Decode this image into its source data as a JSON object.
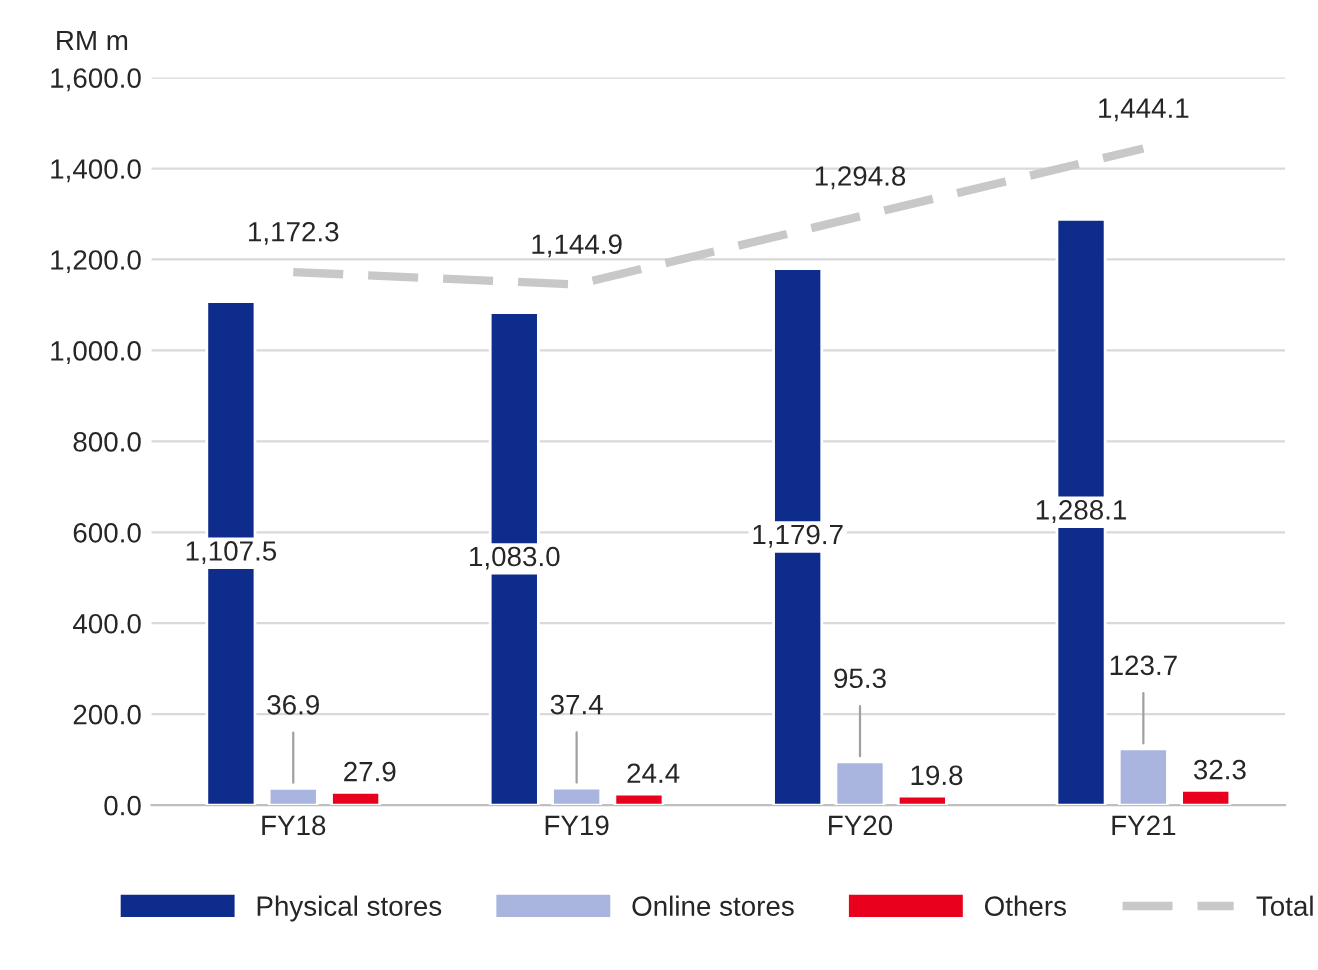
{
  "chart_data": {
    "type": "bar",
    "ylabel": "RM m",
    "categories": [
      "FY18",
      "FY19",
      "FY20",
      "FY21"
    ],
    "series": [
      {
        "name": "Physical stores",
        "color": "#0d2c8c",
        "values": [
          1107.5,
          1083.0,
          1179.7,
          1288.1
        ],
        "value_labels": [
          "1,107.5",
          "1,083.0",
          "1,179.7",
          "1,288.1"
        ]
      },
      {
        "name": "Online stores",
        "color": "#a9b5de",
        "values": [
          36.9,
          37.4,
          95.3,
          123.7
        ],
        "value_labels": [
          "36.9",
          "37.4",
          "95.3",
          "123.7"
        ]
      },
      {
        "name": "Others",
        "color": "#e8001c",
        "values": [
          27.9,
          24.4,
          19.8,
          32.3
        ],
        "value_labels": [
          "27.9",
          "24.4",
          "19.8",
          "32.3"
        ]
      },
      {
        "name": "Total",
        "type": "line",
        "line_style": "dashed",
        "color": "#c8c8c8",
        "values": [
          1172.3,
          1144.9,
          1294.8,
          1444.1
        ],
        "value_labels": [
          "1,172.3",
          "1,144.9",
          "1,294.8",
          "1,444.1"
        ]
      }
    ],
    "ylim": [
      0,
      1600
    ],
    "yticks": [
      {
        "value": 0,
        "label": "0.0"
      },
      {
        "value": 200,
        "label": "200.0"
      },
      {
        "value": 400,
        "label": "400.0"
      },
      {
        "value": 600,
        "label": "600.0"
      },
      {
        "value": 800,
        "label": "800.0"
      },
      {
        "value": 1000,
        "label": "1,000.0"
      },
      {
        "value": 1200,
        "label": "1,200.0"
      },
      {
        "value": 1400,
        "label": "1,400.0"
      },
      {
        "value": 1600,
        "label": "1,600.0"
      }
    ],
    "grid": "y",
    "legend": "bottom"
  }
}
